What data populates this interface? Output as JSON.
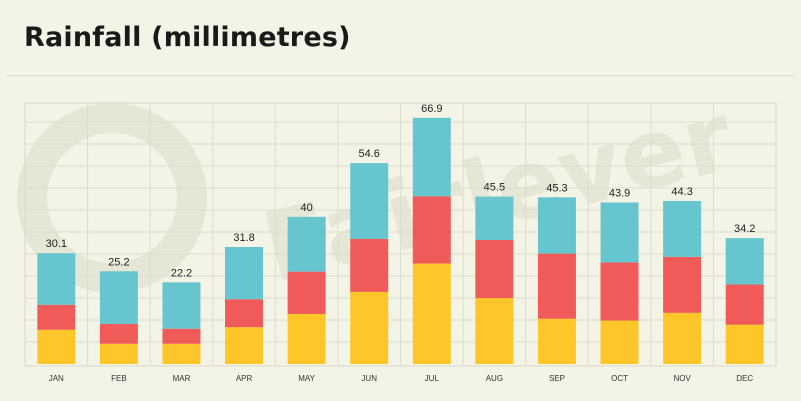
{
  "title": "Rainfall (millimetres)",
  "chart_data": {
    "type": "bar",
    "stacked": true,
    "title": "Rainfall (millimetres)",
    "xlabel": "",
    "ylabel": "",
    "ylim": [
      0,
      70
    ],
    "grid": true,
    "legend": "none",
    "categories": [
      "JAN",
      "FEB",
      "MAR",
      "APR",
      "MAY",
      "JUN",
      "JUL",
      "AUG",
      "SEP",
      "OCT",
      "NOV",
      "DEC"
    ],
    "totals": [
      30.1,
      25.2,
      22.2,
      31.8,
      40,
      54.6,
      66.9,
      45.5,
      45.3,
      43.9,
      44.3,
      34.2
    ],
    "series": [
      {
        "color": "#ffc629",
        "values": [
          9.3,
          5.5,
          5.5,
          10.0,
          13.6,
          19.6,
          27.3,
          17.9,
          12.3,
          11.8,
          13.9,
          10.7
        ]
      },
      {
        "color": "#f05b59",
        "values": [
          6.8,
          5.4,
          4.1,
          7.6,
          11.5,
          14.4,
          18.3,
          15.8,
          17.7,
          15.8,
          15.2,
          10.9
        ]
      },
      {
        "color": "#66c5cf",
        "values": [
          14.0,
          14.3,
          12.6,
          14.2,
          14.9,
          20.6,
          21.3,
          11.8,
          15.3,
          16.3,
          15.2,
          12.6
        ]
      }
    ],
    "watermark": "Fairlever"
  }
}
